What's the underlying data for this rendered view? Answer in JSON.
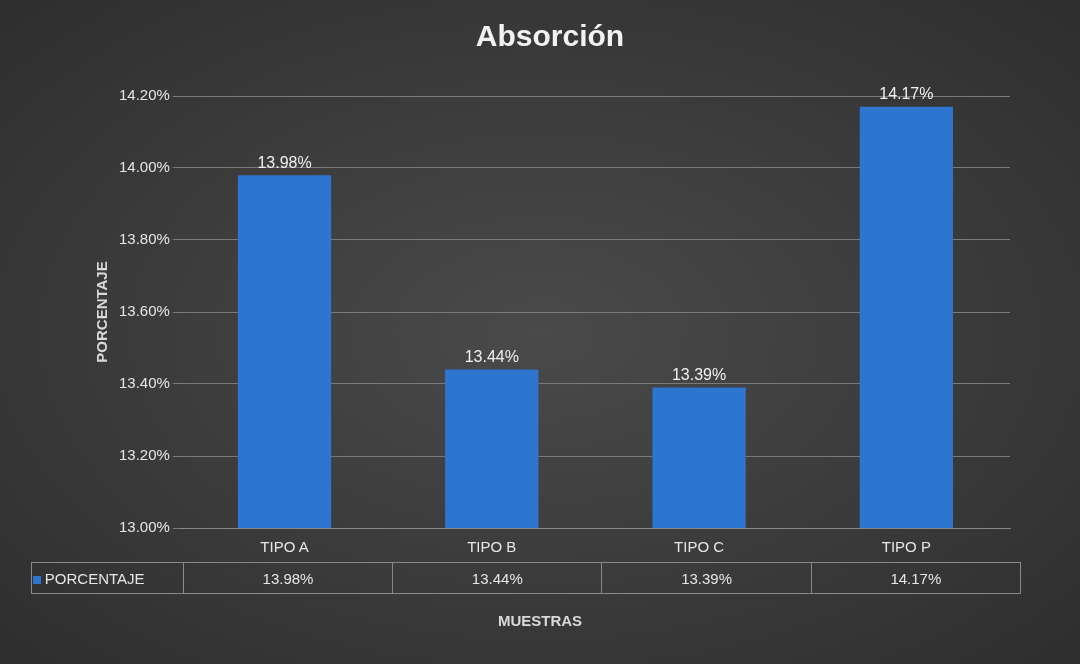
{
  "chart_data": {
    "type": "bar",
    "title": "Absorción",
    "xlabel": "MUESTRAS",
    "ylabel": "PORCENTAJE",
    "categories": [
      "TIPO A",
      "TIPO B",
      "TIPO C",
      "TIPO P"
    ],
    "series": [
      {
        "name": "PORCENTAJE",
        "color": "#2e75d0",
        "values": [
          13.98,
          13.44,
          13.39,
          14.17
        ],
        "value_labels": [
          "13.98%",
          "13.44%",
          "13.39%",
          "14.17%"
        ]
      }
    ],
    "ylim": [
      13,
      14.2
    ],
    "yticks": [
      {
        "value": 13,
        "label": "13.00%"
      },
      {
        "value": 13.2,
        "label": "13.20%"
      },
      {
        "value": 13.4,
        "label": "13.40%"
      },
      {
        "value": 13.6,
        "label": "13.60%"
      },
      {
        "value": 13.8,
        "label": "13.80%"
      },
      {
        "value": 14,
        "label": "14.00%"
      },
      {
        "value": 14.2,
        "label": "14.20%"
      }
    ],
    "grid": "y",
    "legend": "bottom"
  }
}
